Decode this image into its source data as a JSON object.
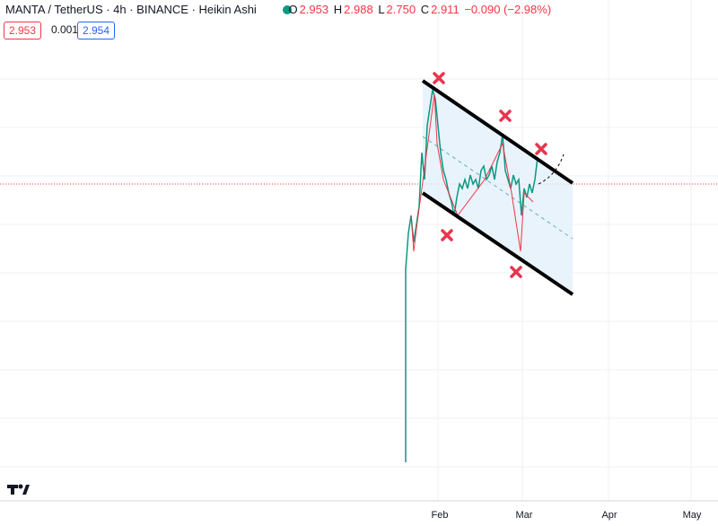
{
  "header": {
    "symbol": "MANTA / TetherUS · 4h · BINANCE · Heikin Ashi",
    "ohlc": [
      {
        "key": "O",
        "value": "2.953"
      },
      {
        "key": "H",
        "value": "2.988"
      },
      {
        "key": "L",
        "value": "2.750"
      },
      {
        "key": "C",
        "value": "2.911"
      }
    ],
    "change": "−0.090 (−2.98%)"
  },
  "price_boxes": {
    "bid": "2.953",
    "spread": "0.001",
    "ask": "2.954"
  },
  "x_axis": {
    "labels": [
      "Feb",
      "Mar",
      "Apr",
      "May"
    ]
  }
}
